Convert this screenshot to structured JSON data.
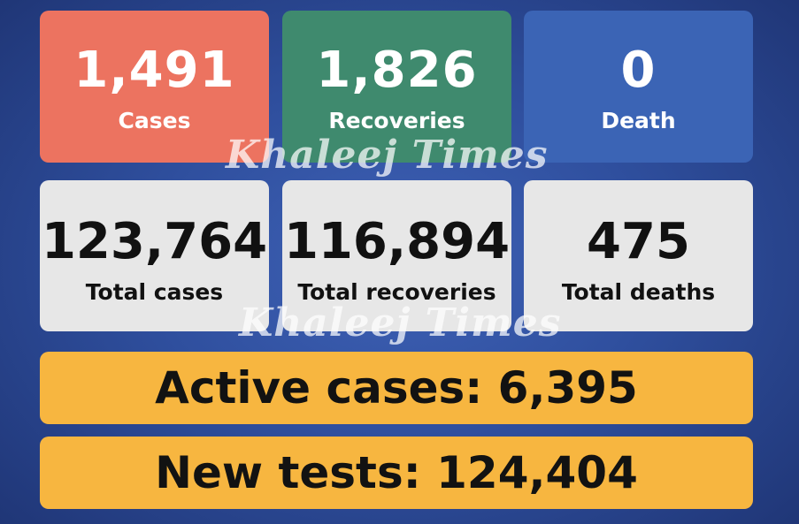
{
  "daily": [
    {
      "value": "1,491",
      "label": "Cases",
      "color": "#ec7360"
    },
    {
      "value": "1,826",
      "label": "Recoveries",
      "color": "#3f8a6e"
    },
    {
      "value": "0",
      "label": "Death",
      "color": "#3b64b5"
    }
  ],
  "totals": [
    {
      "value": "123,764",
      "label": "Total cases"
    },
    {
      "value": "116,894",
      "label": "Total recoveries"
    },
    {
      "value": "475",
      "label": "Total deaths"
    }
  ],
  "active": "Active cases: 6,395",
  "tests": "New tests: 124,404",
  "watermark": "Khaleej Times"
}
